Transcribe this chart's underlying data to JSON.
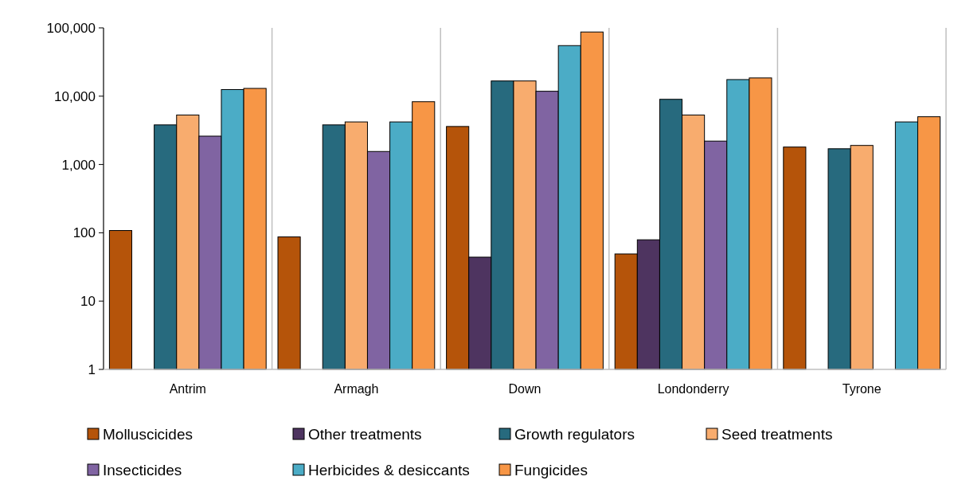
{
  "chart_data": {
    "type": "bar",
    "log": true,
    "categories": [
      "Antrim",
      "Armagh",
      "Down",
      "Londonderry",
      "Tyrone"
    ],
    "ylim": [
      1,
      100000
    ],
    "yticks": [
      {
        "value": 1,
        "label": "1"
      },
      {
        "value": 10,
        "label": "10"
      },
      {
        "value": 100,
        "label": "100"
      },
      {
        "value": 1000,
        "label": "1,000"
      },
      {
        "value": 10000,
        "label": "10,000"
      },
      {
        "value": 100000,
        "label": "100,000"
      }
    ],
    "grid": "x",
    "legend": "bottom",
    "series": [
      {
        "name": "Molluscicides",
        "color": "#b5540a",
        "values": [
          108,
          87,
          3600,
          49,
          1800
        ]
      },
      {
        "name": "Other treatments",
        "color": "#4e3460",
        "values": [
          null,
          null,
          44,
          79,
          null
        ]
      },
      {
        "name": "Growth regulators",
        "color": "#276a7e",
        "values": [
          3800,
          3800,
          16700,
          9000,
          1700
        ]
      },
      {
        "name": "Seed treatments",
        "color": "#f8ac6e",
        "values": [
          5300,
          4200,
          16700,
          5300,
          1900
        ]
      },
      {
        "name": "Insecticides",
        "color": "#8064a2",
        "values": [
          2600,
          1550,
          11800,
          2200,
          null
        ]
      },
      {
        "name": "Herbicides & desiccants",
        "color": "#4bacc6",
        "values": [
          12500,
          4200,
          55000,
          17500,
          4200
        ]
      },
      {
        "name": "Fungicides",
        "color": "#f79646",
        "values": [
          13000,
          8300,
          87000,
          18500,
          5000
        ]
      }
    ]
  }
}
